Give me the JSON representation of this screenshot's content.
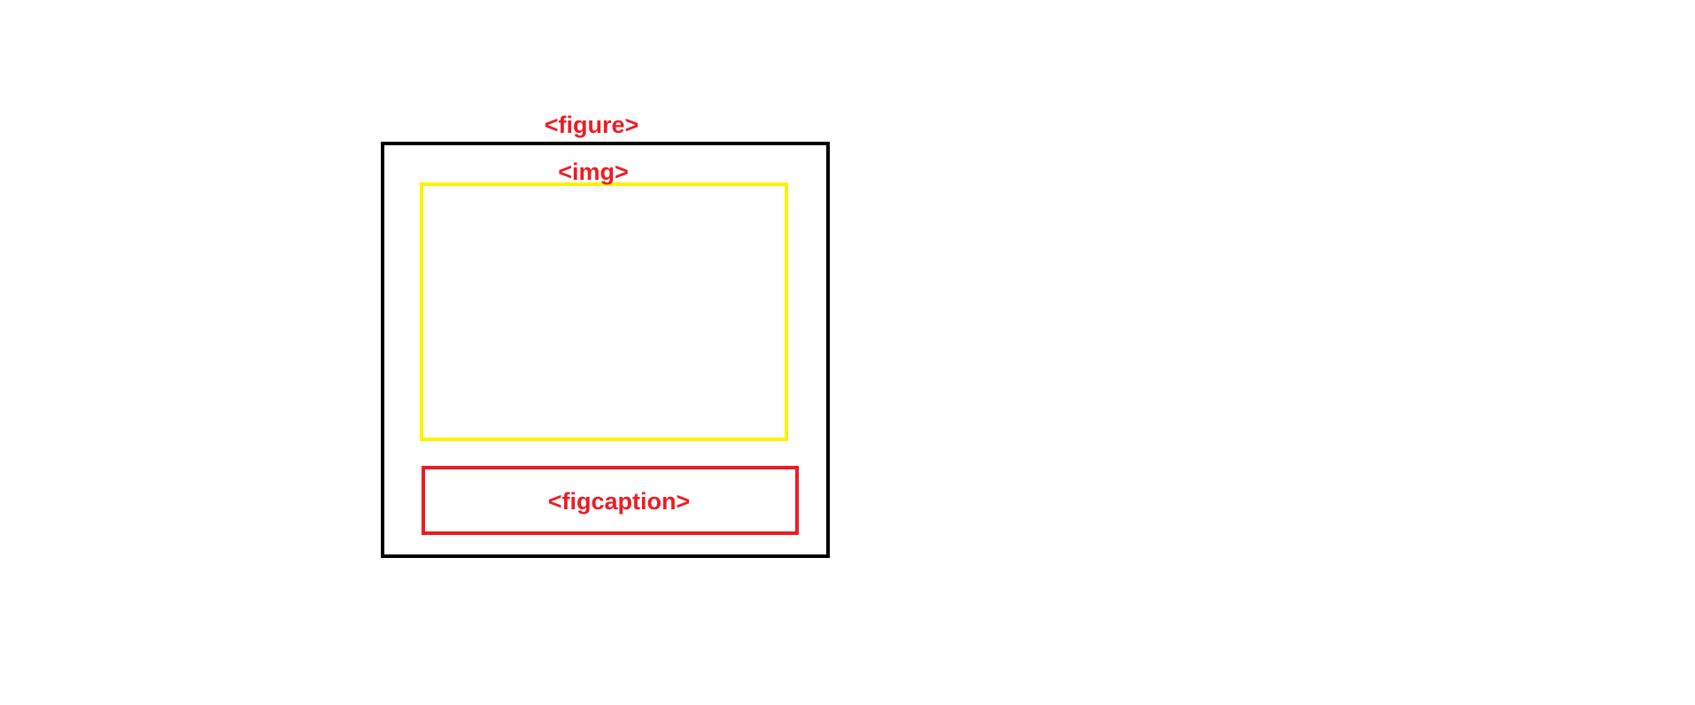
{
  "diagram": {
    "colors": {
      "label": "#ed1c24",
      "figure_border": "#000000",
      "img_border": "#fff200",
      "figcaption_border": "#ed1c24"
    },
    "figure_label": "<figure>",
    "img_label": "<img>",
    "figcaption_label": "<figcaption>"
  }
}
